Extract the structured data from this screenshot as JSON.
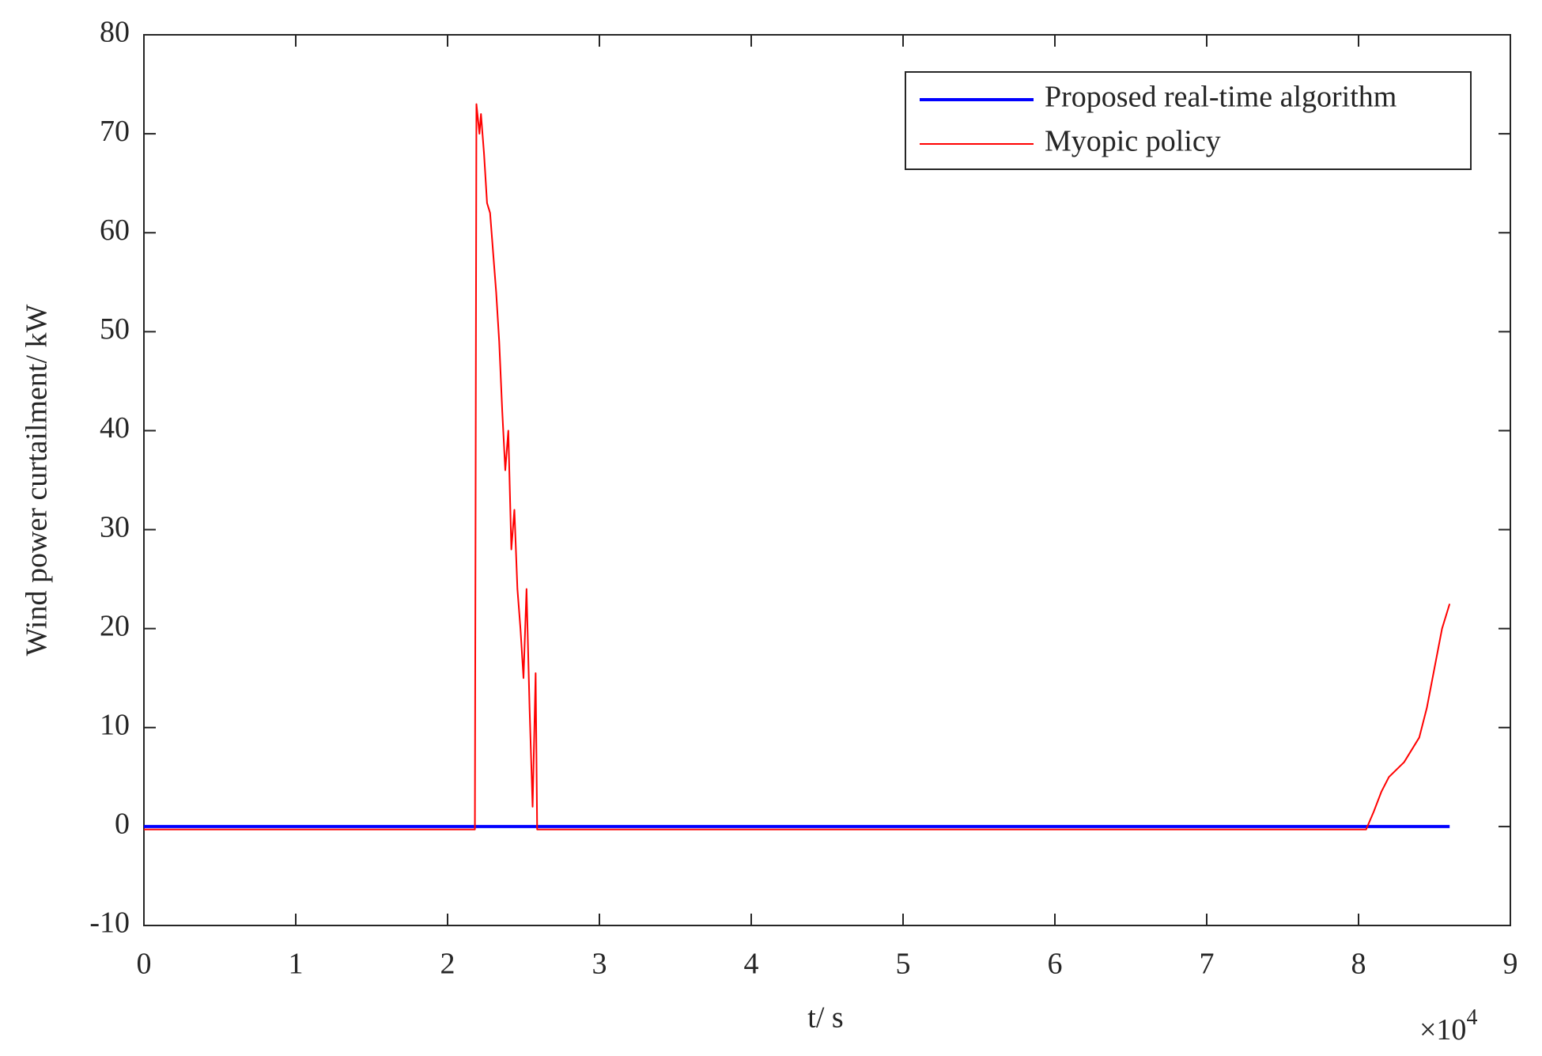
{
  "chart_data": {
    "type": "line",
    "ylabel": "Wind power curtailment/ kW",
    "xlabel": "t/ s",
    "x_multiplier": {
      "base": "×10",
      "exponent": "4"
    },
    "xlim": [
      0,
      9
    ],
    "xticks": [
      0,
      1,
      2,
      3,
      4,
      5,
      6,
      7,
      8,
      9
    ],
    "ylim": [
      -10,
      80
    ],
    "yticks": [
      -10,
      0,
      10,
      20,
      30,
      40,
      50,
      60,
      70,
      80
    ],
    "grid": false,
    "legend": "upper right",
    "series": [
      {
        "name": "Proposed real-time algorithm",
        "color": "#0000ff",
        "width": 4,
        "x": [
          0,
          8.6
        ],
        "values": [
          0,
          0
        ]
      },
      {
        "name": "Myopic policy",
        "color": "#ff0000",
        "width": 2,
        "x": [
          0,
          2.18,
          2.19,
          2.21,
          2.22,
          2.24,
          2.26,
          2.28,
          2.3,
          2.32,
          2.34,
          2.36,
          2.38,
          2.4,
          2.42,
          2.44,
          2.46,
          2.48,
          2.5,
          2.52,
          2.54,
          2.56,
          2.58,
          2.59,
          5,
          8.05,
          8.1,
          8.15,
          8.2,
          8.3,
          8.4,
          8.45,
          8.5,
          8.55,
          8.6
        ],
        "values": [
          -0.3,
          -0.3,
          73,
          70,
          72,
          68,
          63,
          62,
          58,
          54,
          49,
          42,
          36,
          40,
          28,
          32,
          24,
          20,
          15,
          24,
          12,
          2,
          15.5,
          -0.3,
          -0.3,
          -0.3,
          1.5,
          3.5,
          5,
          6.5,
          9,
          12,
          16,
          20,
          22.5
        ]
      }
    ]
  }
}
